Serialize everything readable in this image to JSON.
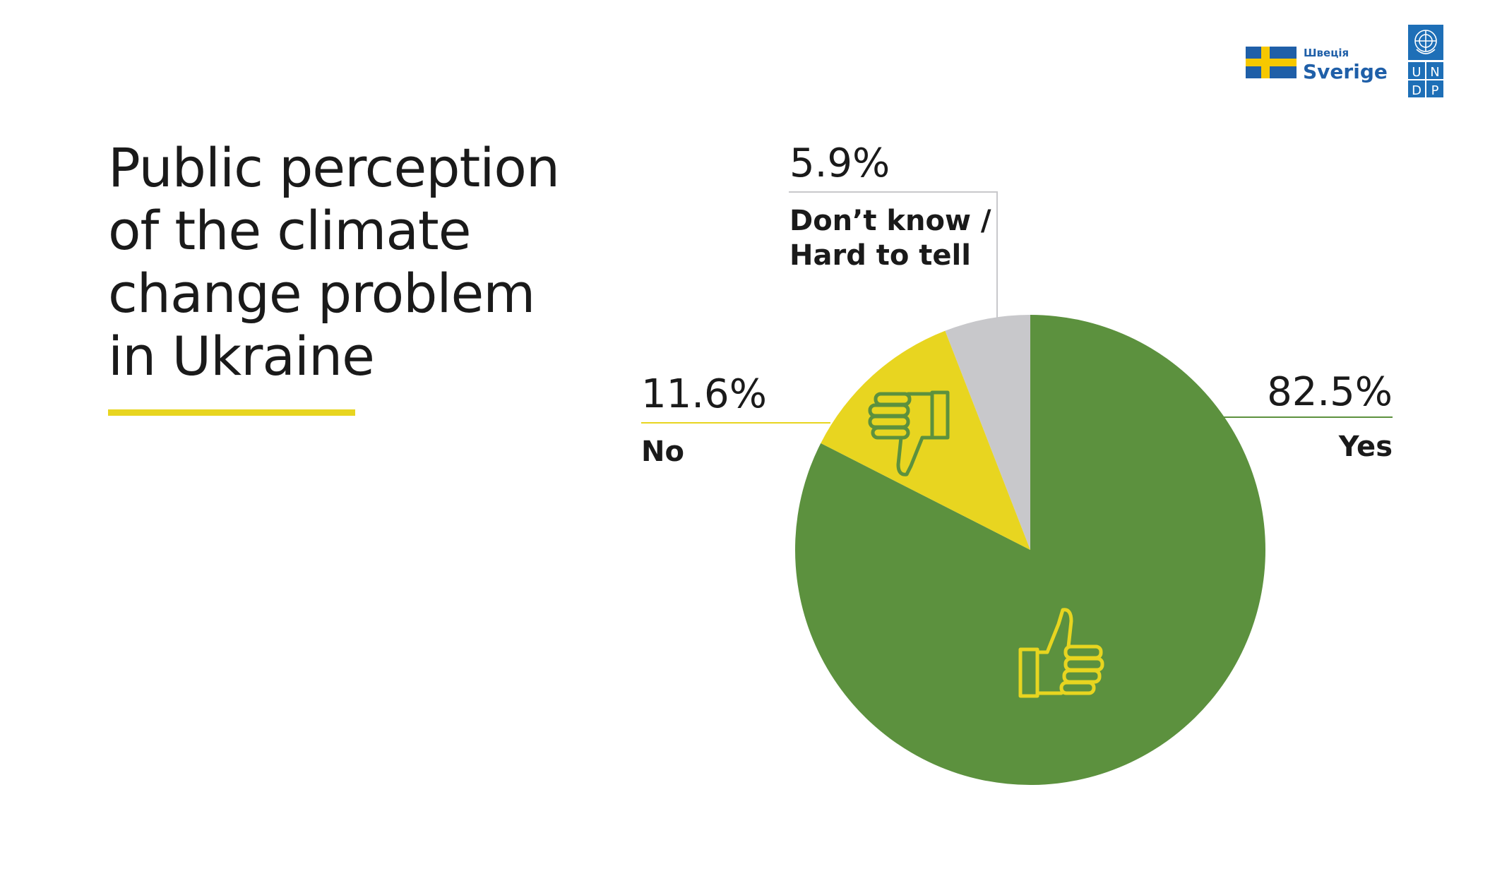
{
  "title_lines": [
    "Public perception",
    "of the climate",
    "change problem",
    "in Ukraine"
  ],
  "logos": {
    "sweden_small": "Швеція",
    "sweden_name": "Sverige",
    "undp_letters": [
      "U",
      "N",
      "D",
      "P"
    ]
  },
  "colors": {
    "yes": "#5c913e",
    "no": "#e8d520",
    "dont_know": "#c8c8cb",
    "title_rule": "#e8d520",
    "sweden_blue": "#1f5fa8",
    "sweden_yellow": "#f6c800",
    "undp_blue": "#1e6fb7"
  },
  "chart_data": {
    "type": "pie",
    "slices": [
      {
        "label": "Yes",
        "value": 82.5,
        "value_label": "82.5%",
        "color": "#5c913e",
        "icon": "thumbs-up-icon"
      },
      {
        "label": "Don’t know / Hard to tell",
        "label_lines": [
          "Don’t know /",
          "Hard to tell"
        ],
        "value": 5.9,
        "value_label": "5.9%",
        "color": "#c8c8cb"
      },
      {
        "label": "No",
        "value": 11.6,
        "value_label": "11.6%",
        "color": "#e8d520",
        "icon": "thumbs-down-icon"
      }
    ],
    "order": "counterclockwise from top: Yes, Don’t know / Hard to tell, No"
  }
}
